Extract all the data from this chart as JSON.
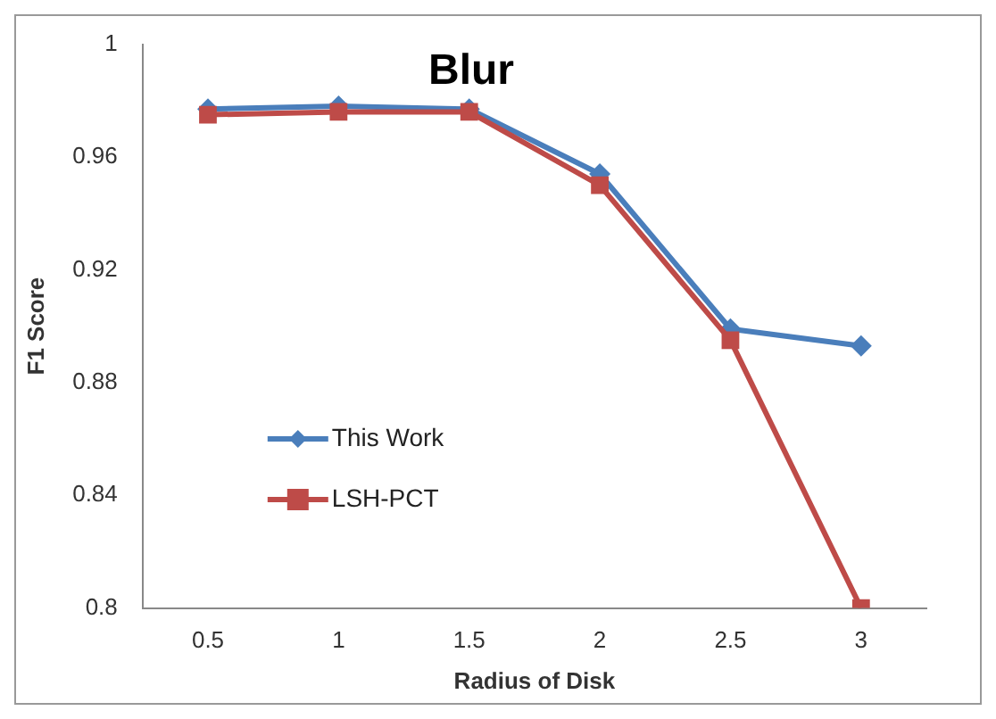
{
  "chart_data": {
    "type": "line",
    "title": "Blur",
    "xlabel": "Radius of Disk",
    "ylabel": "F1 Score",
    "categories": [
      "0.5",
      "1",
      "1.5",
      "2",
      "2.5",
      "3"
    ],
    "series": [
      {
        "name": "This Work",
        "color": "#4a7ebb",
        "values": [
          0.977,
          0.978,
          0.977,
          0.954,
          0.899,
          0.893
        ],
        "marker": "diamond"
      },
      {
        "name": "LSH-PCT",
        "color": "#be4b48",
        "values": [
          0.975,
          0.976,
          0.976,
          0.95,
          0.895,
          0.8
        ],
        "marker": "square"
      }
    ],
    "ylim": [
      0.8,
      1
    ],
    "yticks": [
      "1",
      0.96,
      0.92,
      0.88,
      0.84,
      0.8
    ],
    "grid": false,
    "legend": "left"
  }
}
